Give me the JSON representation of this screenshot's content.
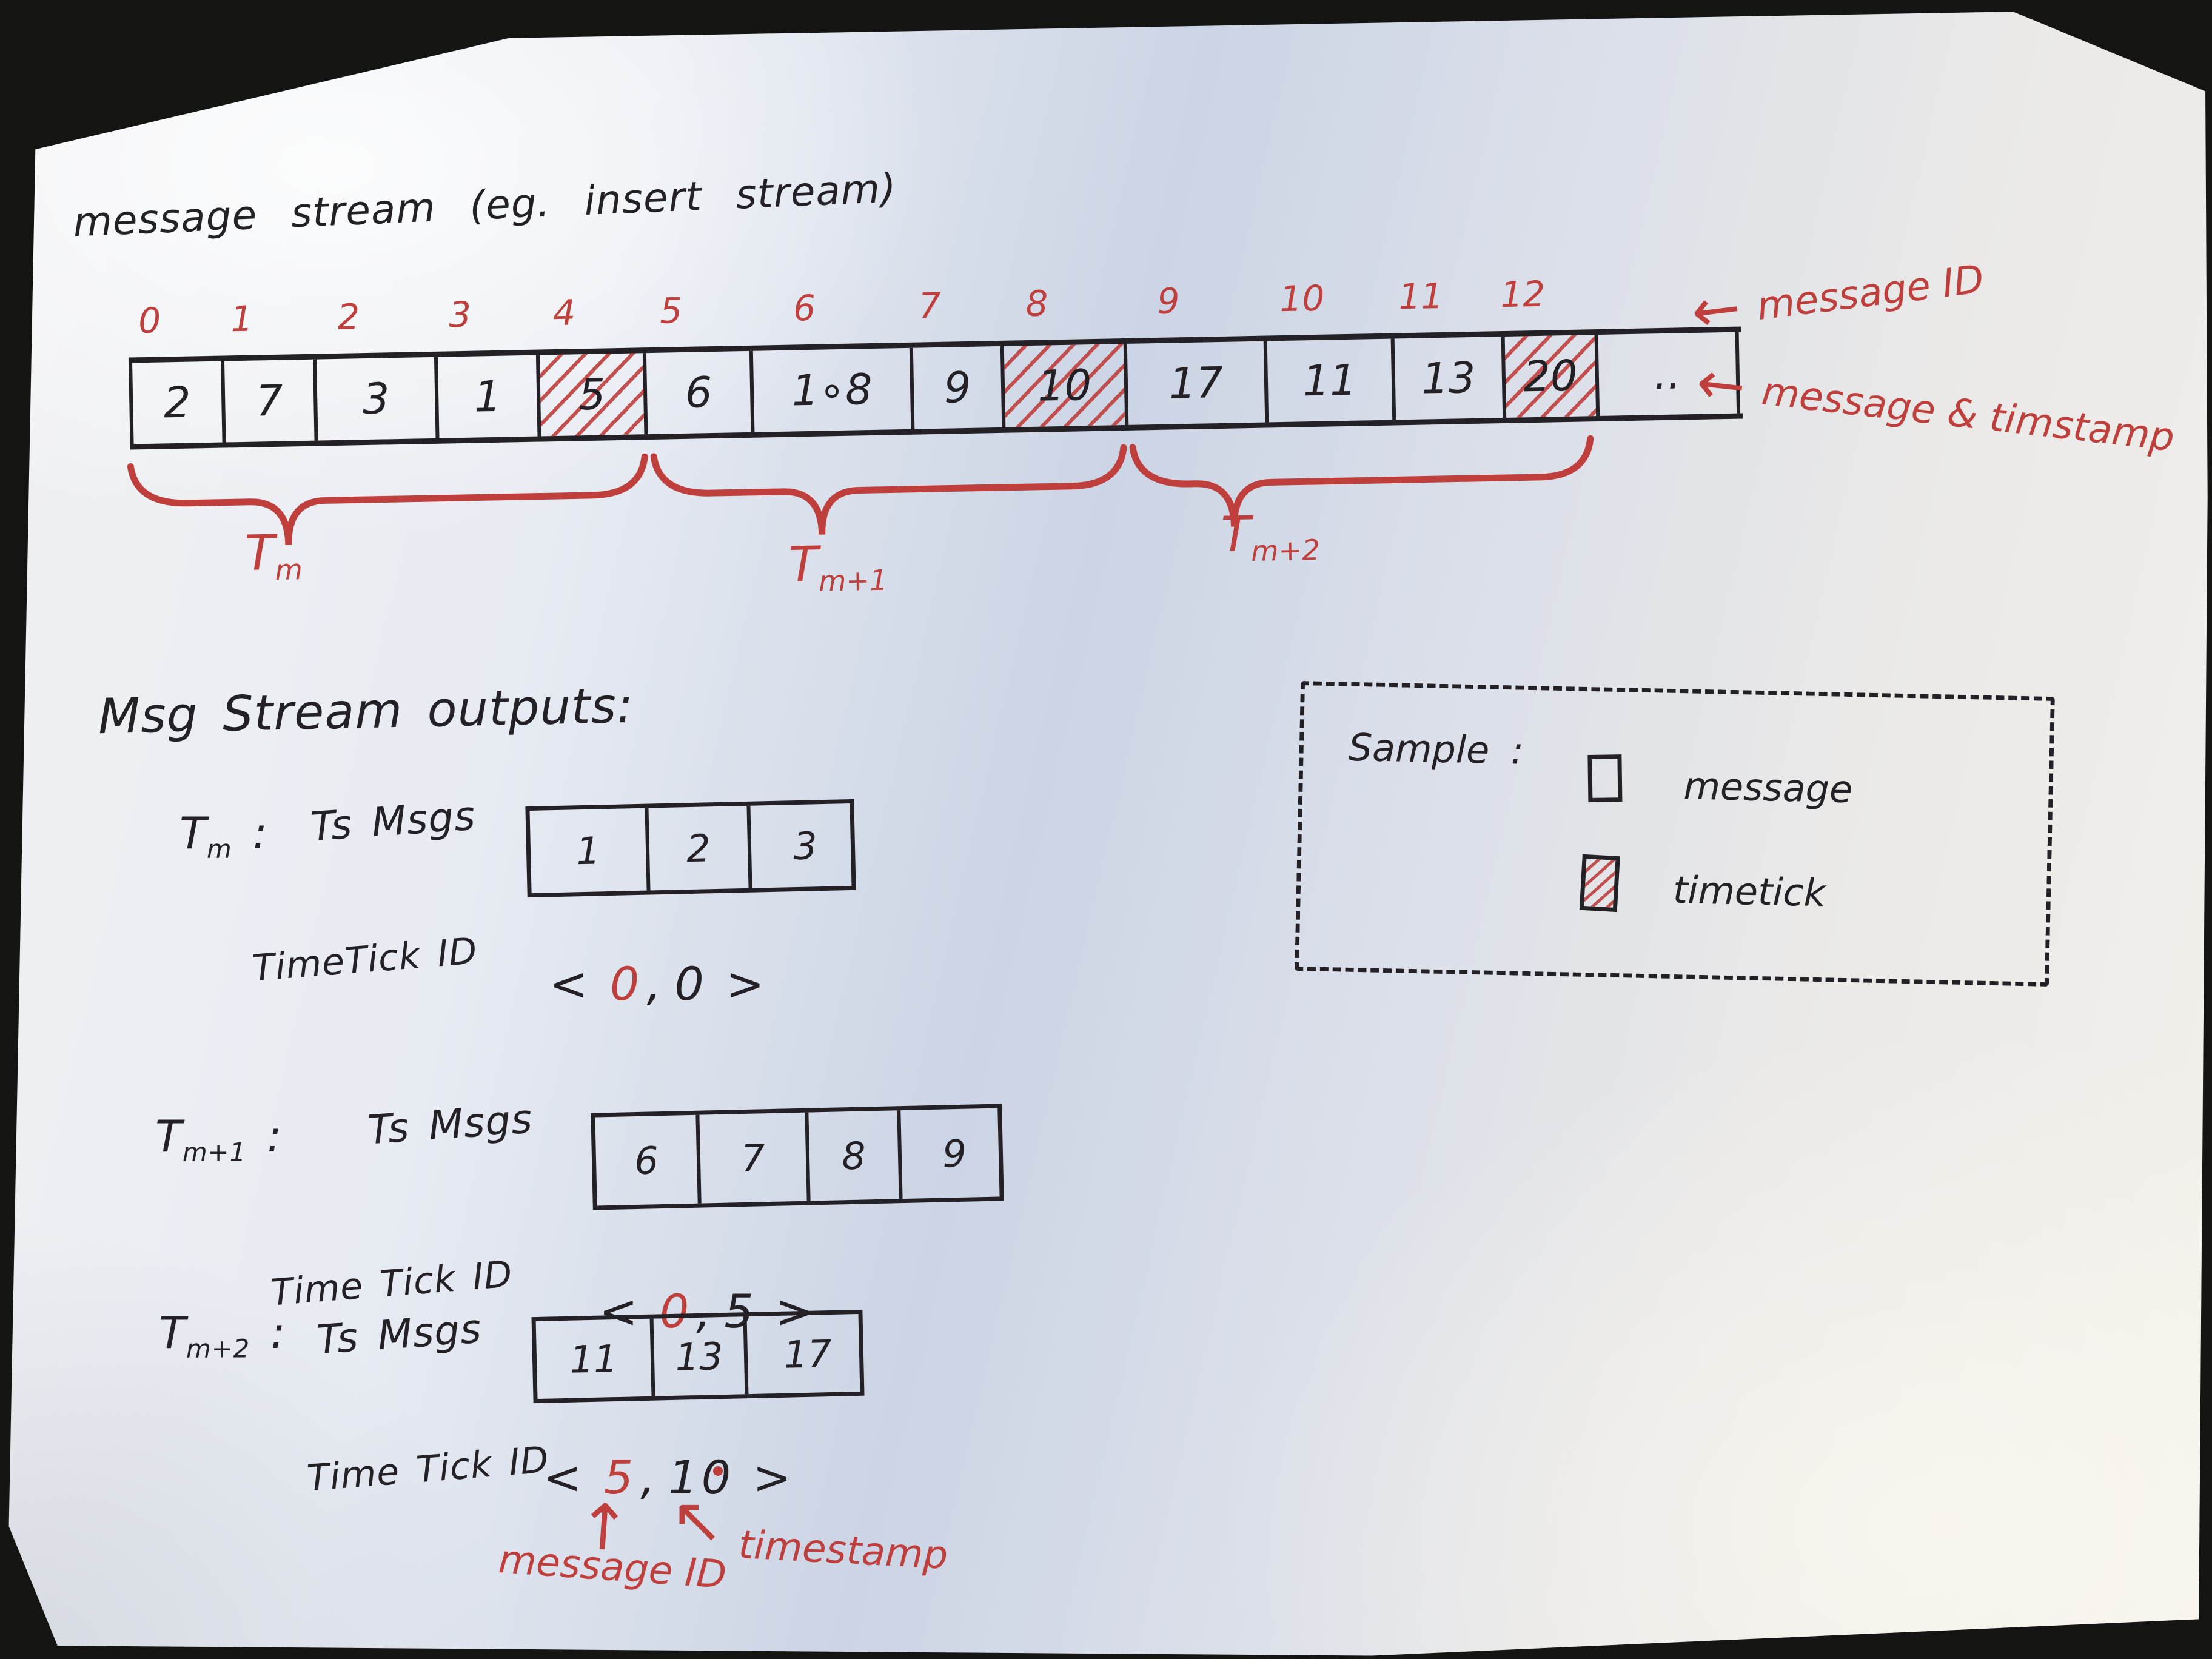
{
  "title": "message stream (eg. insert stream)",
  "colors": {
    "ink": "#232126",
    "red": "#bf3f3c",
    "paper": "#e7ebf2"
  },
  "icons": {
    "left_arrow": "←",
    "up_arrow": "↑",
    "up_left_arrow": "↖",
    "message_box": "message-box",
    "timetick_box": "hatched-timetick-box"
  },
  "punct": {
    "lt": "<",
    "gt": ">",
    "comma": ",",
    "colon": ":"
  },
  "stream": {
    "indices": [
      "0",
      "1",
      "2",
      "3",
      "4",
      "5",
      "6",
      "7",
      "8",
      "9",
      "10",
      "11",
      "12"
    ],
    "cells": [
      {
        "v": "2"
      },
      {
        "v": "7"
      },
      {
        "v": "3"
      },
      {
        "v": "1"
      },
      {
        "v": "5",
        "t": "tick"
      },
      {
        "v": "6"
      },
      {
        "v": "1∘8"
      },
      {
        "v": "9"
      },
      {
        "v": "10",
        "t": "tick"
      },
      {
        "v": "17"
      },
      {
        "v": "11"
      },
      {
        "v": "13"
      },
      {
        "v": "20",
        "t": "tick"
      },
      {
        "v": ".."
      }
    ],
    "braces": [
      {
        "base": "T",
        "sub": "m"
      },
      {
        "base": "T",
        "sub": "m+1"
      },
      {
        "base": "T",
        "sub": "m+2"
      }
    ],
    "right_notes": [
      "message ID",
      "message & timstamp"
    ]
  },
  "outputs": {
    "heading": "Msg Stream outputs:",
    "rows": [
      {
        "name_base": "T",
        "name_sub": "m",
        "msgs_label": "Ts Msgs",
        "msgs": [
          "1",
          "2",
          "3"
        ],
        "tick_label": "TimeTick ID",
        "tick_first": "0",
        "tick_second": "0"
      },
      {
        "name_base": "T",
        "name_sub": "m+1",
        "msgs_label": "Ts Msgs",
        "msgs": [
          "6",
          "7",
          "8",
          "9"
        ],
        "tick_label": "Time Tick ID",
        "tick_first": "0",
        "tick_second": "5"
      },
      {
        "name_base": "T",
        "name_sub": "m+2",
        "msgs_label": "Ts Msgs",
        "msgs": [
          "11",
          "13",
          "17"
        ],
        "tick_label": "Time Tick ID",
        "tick_first": "5",
        "tick_second": "10"
      }
    ],
    "bottom_notes": [
      {
        "arrow": "up",
        "label": "message ID"
      },
      {
        "arrow": "up-left",
        "label": "timestamp"
      }
    ]
  },
  "legend": {
    "title": "Sample :",
    "items": [
      {
        "icon": "message-box",
        "label": "message"
      },
      {
        "icon": "timetick-box",
        "label": "timetick"
      }
    ]
  }
}
